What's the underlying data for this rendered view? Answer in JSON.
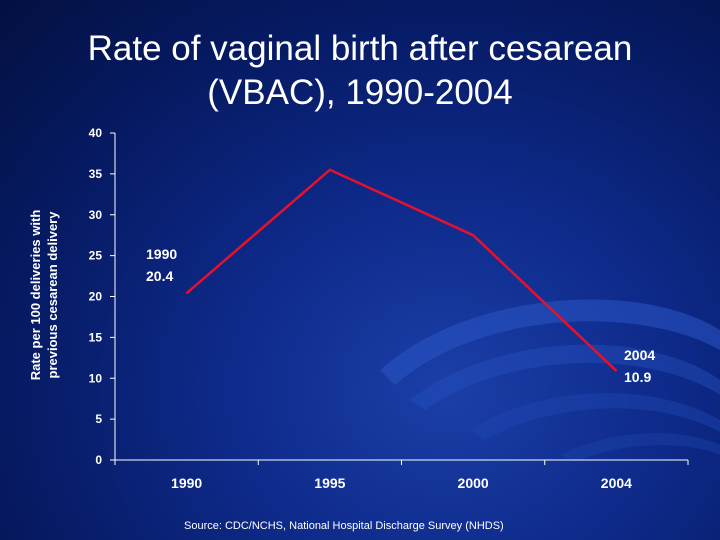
{
  "slide": {
    "title_line1": "Rate of vaginal birth after cesarean",
    "title_line2": "(VBAC), 1990-2004",
    "source": "Source:  CDC/NCHS, National Hospital Discharge Survey (NHDS)"
  },
  "colors": {
    "line": "#e8102a",
    "axis": "#ffffff",
    "text": "#ffffff"
  },
  "chart_data": {
    "type": "line",
    "title": "Rate of vaginal birth after cesarean (VBAC), 1990-2004",
    "xlabel": "",
    "ylabel_line1": "Rate per 100 deliveries with",
    "ylabel_line2": "previous cesarean delivery",
    "x_ticks": [
      "1990",
      "1995",
      "2000",
      "2004"
    ],
    "y_ticks": [
      "0",
      "5",
      "10",
      "15",
      "20",
      "25",
      "30",
      "35",
      "40"
    ],
    "ylim": [
      0,
      40
    ],
    "grid": false,
    "series": [
      {
        "name": "VBAC rate",
        "points": [
          {
            "x": 0,
            "y": 20.4
          },
          {
            "x": 1,
            "y": 35.5
          },
          {
            "x": 2,
            "y": 27.5
          },
          {
            "x": 3,
            "y": 10.9
          }
        ]
      }
    ],
    "annotations": [
      {
        "year": "1990",
        "value": "20.4"
      },
      {
        "year": "2004",
        "value": "10.9"
      }
    ]
  }
}
